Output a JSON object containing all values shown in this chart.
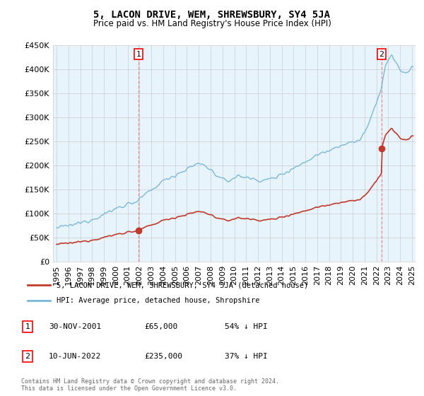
{
  "title": "5, LACON DRIVE, WEM, SHREWSBURY, SY4 5JA",
  "subtitle": "Price paid vs. HM Land Registry's House Price Index (HPI)",
  "legend_label_red": "5, LACON DRIVE, WEM, SHREWSBURY, SY4 5JA (detached house)",
  "legend_label_blue": "HPI: Average price, detached house, Shropshire",
  "sale1_date": "30-NOV-2001",
  "sale1_price": 65000,
  "sale1_x": 2001.917,
  "sale2_date": "10-JUN-2022",
  "sale2_price": 235000,
  "sale2_x": 2022.44,
  "footer": "Contains HM Land Registry data © Crown copyright and database right 2024.\nThis data is licensed under the Open Government Licence v3.0.",
  "ylim": [
    0,
    450000
  ],
  "yticks": [
    0,
    50000,
    100000,
    150000,
    200000,
    250000,
    300000,
    350000,
    400000,
    450000
  ],
  "xlabel_years": [
    1995,
    1996,
    1997,
    1998,
    1999,
    2000,
    2001,
    2002,
    2003,
    2004,
    2005,
    2006,
    2007,
    2008,
    2009,
    2010,
    2011,
    2012,
    2013,
    2014,
    2015,
    2016,
    2017,
    2018,
    2019,
    2020,
    2021,
    2022,
    2023,
    2024,
    2025
  ],
  "hpi_color": "#7ab8d9",
  "sale_color": "#c0392b",
  "vline_color": "#e57373",
  "grid_color": "#cccccc",
  "chart_bg_color": "#e8f4fb",
  "background_color": "#ffffff",
  "title_fontsize": 10,
  "subtitle_fontsize": 8.5
}
